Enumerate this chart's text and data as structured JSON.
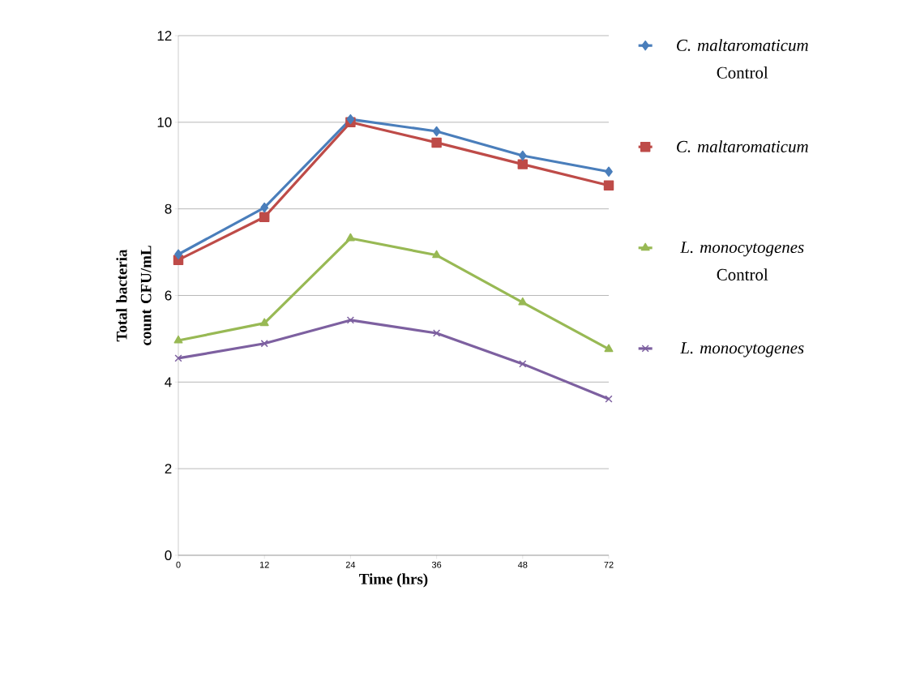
{
  "chart_data": {
    "type": "line",
    "xlabel": "Time (hrs)",
    "ylabel": "Total bacteria count CFU/mL",
    "categories": [
      "0",
      "12",
      "24",
      "36",
      "48",
      "72"
    ],
    "series": [
      {
        "name": "*C. maltaromaticum* Control",
        "color": "#4a7ebb",
        "marker": "diamond",
        "values": [
          6.95,
          8.03,
          10.07,
          9.79,
          9.23,
          8.86
        ]
      },
      {
        "name": "*C. maltaromaticum*",
        "color": "#be4b48",
        "marker": "square",
        "values": [
          6.82,
          7.81,
          10.0,
          9.53,
          9.03,
          8.54
        ]
      },
      {
        "name": "*L. monocytogenes* Control",
        "color": "#98b954",
        "marker": "triangle",
        "values": [
          4.96,
          5.36,
          7.32,
          6.93,
          5.84,
          4.76
        ]
      },
      {
        "name": "*L. monocytogenes*",
        "color": "#7d60a0",
        "marker": "cross",
        "values": [
          4.55,
          4.89,
          5.43,
          5.13,
          4.42,
          3.61
        ]
      }
    ],
    "ylim": [
      0,
      12
    ],
    "yticks": [
      0,
      2,
      4,
      6,
      8,
      10,
      12
    ],
    "grid": "y",
    "legend": "right",
    "line_style": "solid"
  }
}
